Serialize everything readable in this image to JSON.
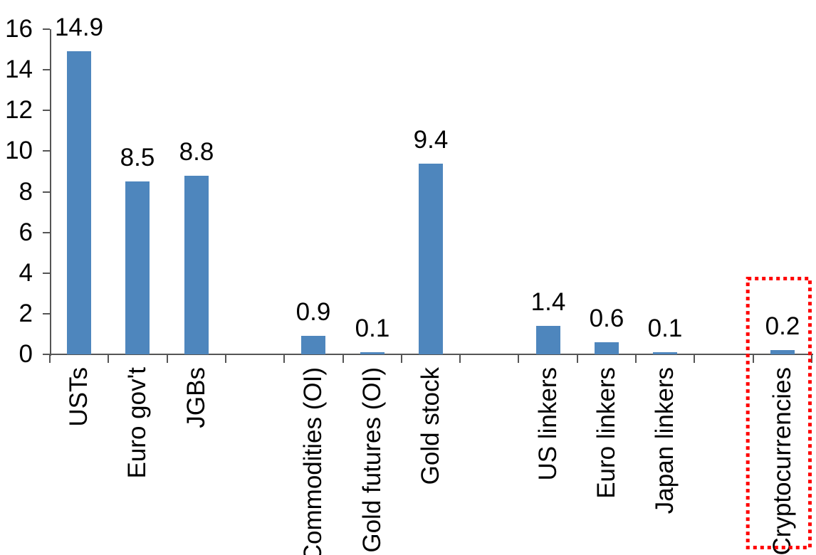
{
  "chart_data": {
    "type": "bar",
    "title": "",
    "xlabel": "",
    "ylabel": "",
    "categories": [
      "USTs",
      "Euro gov't",
      "JGBs",
      "Commodities (OI)",
      "Gold futures (OI)",
      "Gold stock",
      "US linkers",
      "Euro linkers",
      "Japan linkers",
      "Cryptocurrencies"
    ],
    "values": [
      14.9,
      8.5,
      8.8,
      0.9,
      0.1,
      9.4,
      1.4,
      0.6,
      0.1,
      0.2
    ],
    "value_labels": [
      "14.9",
      "8.5",
      "8.8",
      "0.9",
      "0.1",
      "9.4",
      "1.4",
      "0.6",
      "0.1",
      "0.2"
    ],
    "ylim": [
      0,
      16
    ],
    "yticks": [
      0,
      2,
      4,
      6,
      8,
      10,
      12,
      14,
      16
    ],
    "ytick_labels": [
      "0",
      "2",
      "4",
      "6",
      "8",
      "10",
      "12",
      "14",
      "16"
    ],
    "grid": false,
    "legend": "none",
    "colors": {
      "bar": "#4E86BD",
      "axis": "#555555",
      "text": "#000000",
      "highlight_box": "#FF0000"
    },
    "highlight": {
      "category": "Cryptocurrencies",
      "style": "dotted-box"
    },
    "layout": {
      "slots": [
        0,
        1,
        2,
        null,
        3,
        4,
        5,
        null,
        6,
        7,
        8,
        null,
        9
      ],
      "bar_orientation": "vertical",
      "category_label_rotation": -90,
      "value_labels_position": "above-bars"
    }
  }
}
